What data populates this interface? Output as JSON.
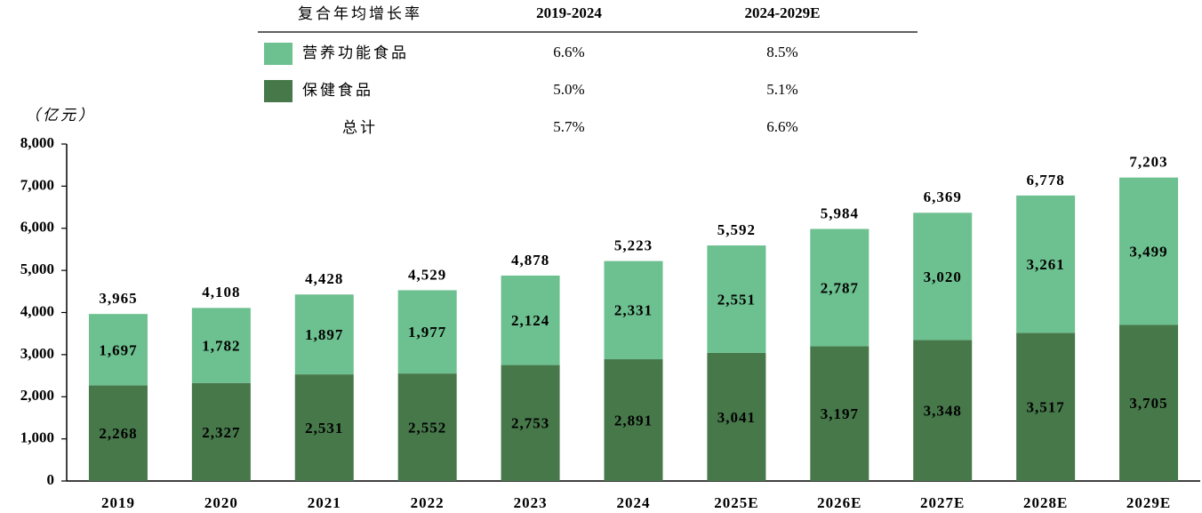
{
  "chart_data": {
    "type": "stacked_bar",
    "y_axis_label": "（亿元）",
    "categories": [
      "2019",
      "2020",
      "2021",
      "2022",
      "2023",
      "2024",
      "2025E",
      "2026E",
      "2027E",
      "2028E",
      "2029E"
    ],
    "series": [
      {
        "name": "保健食品",
        "color": "#46784a",
        "values": [
          2268,
          2327,
          2531,
          2552,
          2753,
          2891,
          3041,
          3197,
          3348,
          3517,
          3705
        ],
        "value_labels": [
          "2,268",
          "2,327",
          "2,531",
          "2,552",
          "2,753",
          "2,891",
          "3,041",
          "3,197",
          "3,348",
          "3,517",
          "3,705"
        ]
      },
      {
        "name": "营养功能食品",
        "color": "#6dc08f",
        "values": [
          1697,
          1782,
          1897,
          1977,
          2124,
          2331,
          2551,
          2787,
          3020,
          3261,
          3499
        ],
        "value_labels": [
          "1,697",
          "1,782",
          "1,897",
          "1,977",
          "2,124",
          "2,331",
          "2,551",
          "2,787",
          "3,020",
          "3,261",
          "3,499"
        ]
      }
    ],
    "totals": {
      "values": [
        3965,
        4108,
        4428,
        4529,
        4878,
        5223,
        5592,
        5984,
        6369,
        6778,
        7203
      ],
      "value_labels": [
        "3,965",
        "4,108",
        "4,428",
        "4,529",
        "4,878",
        "5,223",
        "5,592",
        "5,984",
        "6,369",
        "6,778",
        "7,203"
      ]
    },
    "ylim": [
      0,
      8000
    ],
    "yticks": [
      0,
      {
        "value": 1000,
        "label": "1,000"
      },
      {
        "value": 2000,
        "label": "2,000"
      },
      {
        "value": 3000,
        "label": "3,000"
      },
      {
        "value": 4000,
        "label": "4,000"
      },
      {
        "value": 5000,
        "label": "5,000"
      },
      {
        "value": 6000,
        "label": "6,000"
      },
      {
        "value": 7000,
        "label": "7,000"
      },
      {
        "value": 8000,
        "label": "8,000"
      }
    ],
    "grid": false,
    "cagr_table": {
      "header": [
        "复合年均增长率",
        "2019-2024",
        "2024-2029E"
      ],
      "rows": [
        [
          "6.6%",
          "8.5%"
        ],
        [
          "5.0%",
          "5.1%"
        ]
      ],
      "total_row": {
        "label": "总计",
        "values": [
          "5.7%",
          "6.6%"
        ]
      }
    }
  }
}
